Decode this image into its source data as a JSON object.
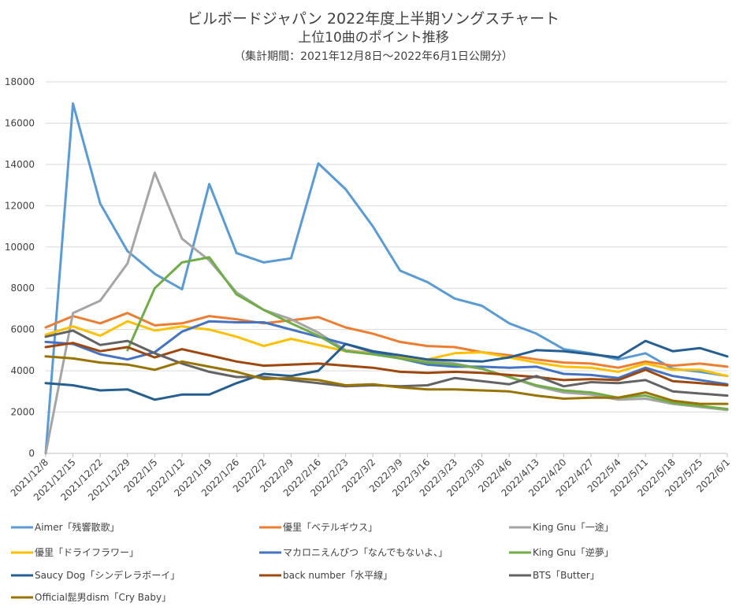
{
  "chart_data": {
    "type": "line",
    "title": "ビルボードジャパン  2022年度上半期ソングスチャート",
    "subtitle": "上位10曲のポイント推移",
    "note": "（集計期間：2021年12月8日～2022年6月1日公開分）",
    "ylim": [
      0,
      18000
    ],
    "yticks": [
      "0",
      "2000",
      "4000",
      "6000",
      "8000",
      "10000",
      "12000",
      "14000",
      "16000",
      "18000"
    ],
    "ytick_values": [
      0,
      2000,
      4000,
      6000,
      8000,
      10000,
      12000,
      14000,
      16000,
      18000
    ],
    "grid": true,
    "legend_position": "bottom",
    "categories": [
      "2021/12/8",
      "2021/12/15",
      "2021/12/22",
      "2021/12/29",
      "2022/1/5",
      "2022/1/12",
      "2022/1/19",
      "2022/1/26",
      "2022/2/2",
      "2022/2/9",
      "2022/2/16",
      "2022/2/23",
      "2022/3/2",
      "2022/3/9",
      "2022/3/16",
      "2022/3/23",
      "2022/3/30",
      "2022/4/6",
      "2022/4/13",
      "2022/4/20",
      "2022/4/27",
      "2022/5/4",
      "2022/5/11",
      "2022/5/18",
      "2022/5/25",
      "2022/6/1"
    ],
    "series": [
      {
        "name": "Aimer「残響散歌」",
        "color": "#5b9bd5",
        "values": [
          0,
          16950,
          12100,
          9800,
          8700,
          7950,
          13050,
          9700,
          9250,
          9450,
          14050,
          12800,
          11000,
          8850,
          8300,
          7500,
          7150,
          6300,
          5800,
          5050,
          4850,
          4550,
          4850,
          4100,
          3950,
          3750
        ]
      },
      {
        "name": "優里「ベテルギウス」",
        "color": "#ed7d31",
        "values": [
          6100,
          6650,
          6300,
          6800,
          6200,
          6300,
          6650,
          6500,
          6300,
          6450,
          6600,
          6100,
          5800,
          5400,
          5200,
          5150,
          4900,
          4750,
          4550,
          4400,
          4350,
          4150,
          4450,
          4250,
          4350,
          4200
        ]
      },
      {
        "name": "King Gnu「一途」",
        "color": "#a5a5a5",
        "values": [
          0,
          6800,
          7400,
          9200,
          13600,
          10400,
          9350,
          7800,
          6950,
          6500,
          5850,
          5000,
          4850,
          4700,
          4500,
          4350,
          4100,
          3700,
          3250,
          2950,
          2850,
          2600,
          2650,
          2400,
          2250,
          2100
        ]
      },
      {
        "name": "優里「ドライフラワー」",
        "color": "#ffc000",
        "values": [
          5750,
          6150,
          5700,
          6400,
          5950,
          6150,
          6000,
          5650,
          5200,
          5550,
          5250,
          4950,
          4850,
          4700,
          4550,
          4850,
          4900,
          4650,
          4400,
          4200,
          4150,
          3950,
          4350,
          4050,
          4050,
          3750
        ]
      },
      {
        "name": "マカロニえんぴつ「なんでもないよ、」",
        "color": "#4472c4",
        "values": [
          5400,
          5300,
          4800,
          4550,
          4900,
          5900,
          6400,
          6350,
          6350,
          6000,
          5650,
          5300,
          4900,
          4600,
          4300,
          4200,
          4200,
          4150,
          4200,
          3850,
          3800,
          3650,
          4150,
          3750,
          3550,
          3350
        ]
      },
      {
        "name": "King Gnu「逆夢」",
        "color": "#70ad47",
        "values": [
          null,
          null,
          null,
          5000,
          8000,
          9250,
          9500,
          7700,
          6950,
          6300,
          5700,
          4950,
          4800,
          4600,
          4400,
          4300,
          4100,
          3700,
          3300,
          3050,
          2950,
          2700,
          2800,
          2450,
          2300,
          2150
        ]
      },
      {
        "name": "Saucy Dog「シンデレラボーイ」",
        "color": "#255e91",
        "values": [
          3400,
          3300,
          3050,
          3100,
          2600,
          2850,
          2850,
          3400,
          3850,
          3750,
          4000,
          5300,
          4950,
          4750,
          4550,
          4500,
          4450,
          4650,
          5000,
          4950,
          4800,
          4650,
          5450,
          4950,
          5100,
          4700
        ]
      },
      {
        "name": "back number「水平線」",
        "color": "#9e480e",
        "values": [
          5150,
          5350,
          4950,
          5150,
          4650,
          5050,
          4750,
          4450,
          4250,
          4300,
          4350,
          4250,
          4150,
          3950,
          3900,
          3950,
          3900,
          3800,
          3700,
          3550,
          3600,
          3550,
          4050,
          3500,
          3400,
          3300
        ]
      },
      {
        "name": "BTS「Butter」",
        "color": "#636363",
        "values": [
          5650,
          5950,
          5250,
          5450,
          4850,
          4350,
          3950,
          3700,
          3700,
          3550,
          3400,
          3250,
          3300,
          3250,
          3300,
          3650,
          3500,
          3350,
          3750,
          3250,
          3450,
          3400,
          3550,
          3000,
          2900,
          2800
        ]
      },
      {
        "name": "Official髭男dism「Cry Baby」",
        "color": "#997300",
        "values": [
          4700,
          4600,
          4400,
          4300,
          4050,
          4450,
          4200,
          3950,
          3600,
          3650,
          3550,
          3300,
          3350,
          3200,
          3100,
          3100,
          3050,
          3000,
          2800,
          2650,
          2700,
          2700,
          2950,
          2550,
          2400,
          2400
        ]
      }
    ]
  }
}
